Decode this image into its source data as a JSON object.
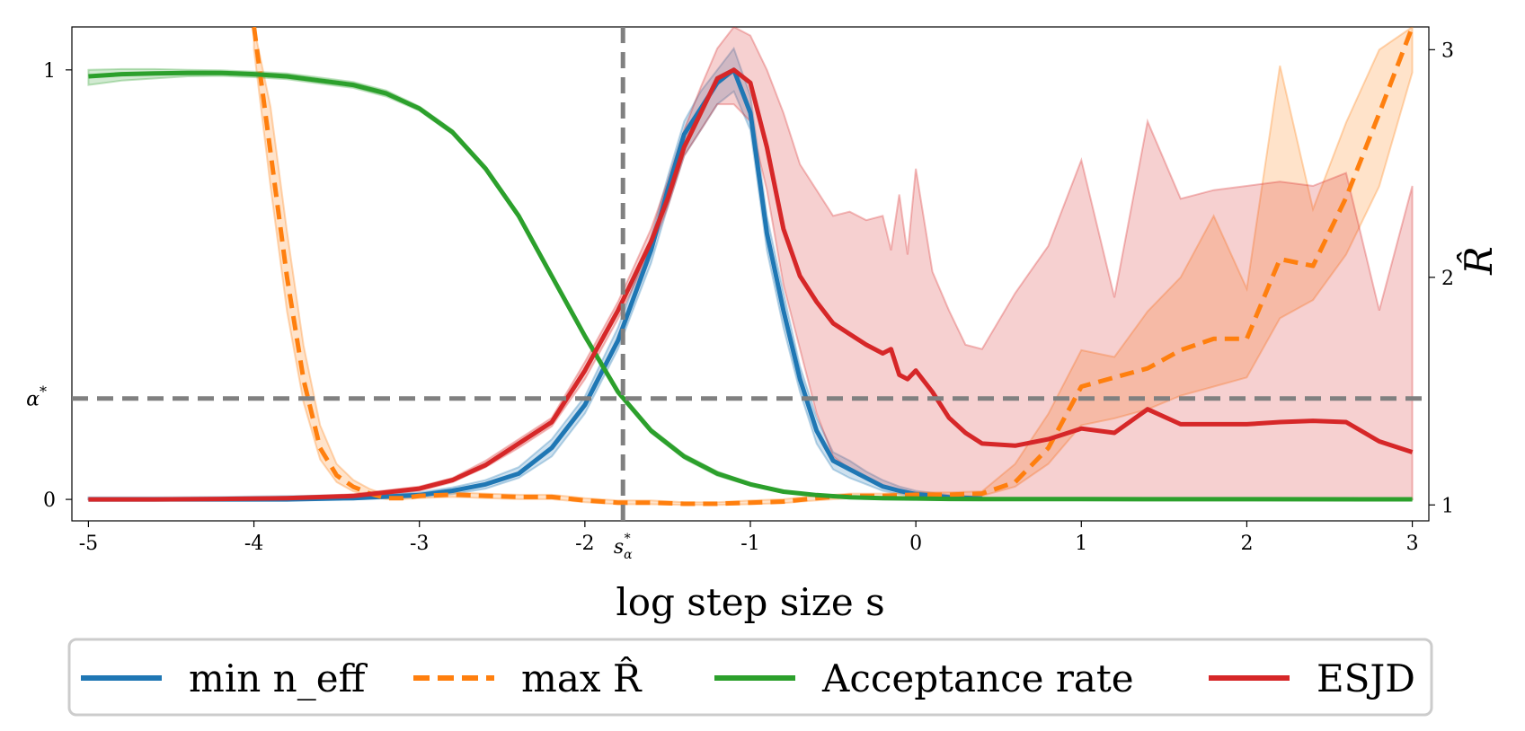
{
  "chart_data": {
    "type": "line",
    "xlabel": "log step size s",
    "y2label": "R̂",
    "xlim": [
      -5.1,
      3.1
    ],
    "ylim": [
      -0.05,
      1.1
    ],
    "y2lim": [
      0.93,
      3.1
    ],
    "x_ticks": [
      -5,
      -4,
      -3,
      -2,
      -1,
      0,
      1,
      2,
      3
    ],
    "x_tick_labels": [
      "-5",
      "-4",
      "-3",
      "-2",
      "-1",
      "0",
      "1",
      "2",
      "3"
    ],
    "y_ticks": [
      0,
      1
    ],
    "y_tick_labels": [
      "0",
      "1"
    ],
    "y2_ticks": [
      1,
      2,
      3
    ],
    "y2_tick_labels": [
      "1",
      "2",
      "3"
    ],
    "reference_lines": {
      "s_alpha_star": {
        "x": -1.77,
        "label": "s*α"
      },
      "alpha_star": {
        "y": 0.235,
        "label": "α*"
      }
    },
    "legend": {
      "position": "bottom, outside",
      "entries": [
        "min n_eff",
        "max R̂",
        "Acceptance rate",
        "ESJD"
      ]
    },
    "series": [
      {
        "name": "min n_eff",
        "color": "#1f77b4",
        "style": "solid",
        "axis": "left",
        "x": [
          -5,
          -4.6,
          -4.2,
          -3.8,
          -3.4,
          -3,
          -2.8,
          -2.6,
          -2.4,
          -2.2,
          -2,
          -1.8,
          -1.6,
          -1.5,
          -1.4,
          -1.3,
          -1.2,
          -1.1,
          -1.0,
          -0.9,
          -0.8,
          -0.7,
          -0.6,
          -0.5,
          -0.4,
          -0.3,
          -0.2,
          -0.1,
          0,
          0.2,
          0.4
        ],
        "y": [
          0,
          0,
          0,
          0,
          0.003,
          0.01,
          0.02,
          0.035,
          0.06,
          0.12,
          0.22,
          0.37,
          0.58,
          0.72,
          0.85,
          0.91,
          0.97,
          1.0,
          0.9,
          0.62,
          0.44,
          0.28,
          0.16,
          0.09,
          0.07,
          0.05,
          0.03,
          0.02,
          0.012,
          0.005,
          0.002
        ],
        "band_y_low": [
          0,
          0,
          0,
          0,
          0,
          0.005,
          0.012,
          0.025,
          0.05,
          0.1,
          0.2,
          0.35,
          0.55,
          0.68,
          0.8,
          0.86,
          0.92,
          0.95,
          0.86,
          0.58,
          0.4,
          0.25,
          0.13,
          0.07,
          0.05,
          0.035,
          0.02,
          0.012,
          0.006,
          0.002,
          0
        ],
        "band_y_high": [
          0.005,
          0.005,
          0.006,
          0.008,
          0.01,
          0.016,
          0.028,
          0.045,
          0.075,
          0.14,
          0.24,
          0.4,
          0.61,
          0.75,
          0.88,
          0.95,
          1.0,
          1.05,
          0.94,
          0.66,
          0.48,
          0.31,
          0.19,
          0.11,
          0.09,
          0.065,
          0.045,
          0.03,
          0.02,
          0.01,
          0.005
        ]
      },
      {
        "name": "max R̂",
        "color": "#ff7f0e",
        "style": "dashed",
        "axis": "right",
        "x": [
          -4.0,
          -3.9,
          -3.8,
          -3.7,
          -3.6,
          -3.5,
          -3.4,
          -3.3,
          -3.2,
          -3.1,
          -3.0,
          -2.8,
          -2.6,
          -2.4,
          -2.2,
          -2.0,
          -1.8,
          -1.6,
          -1.4,
          -1.2,
          -1.0,
          -0.8,
          -0.6,
          -0.4,
          -0.2,
          0.0,
          0.2,
          0.4,
          0.6,
          0.8,
          1.0,
          1.2,
          1.4,
          1.6,
          1.8,
          2.0,
          2.2,
          2.4,
          2.6,
          2.8,
          3.0
        ],
        "y": [
          3.1,
          2.55,
          2.0,
          1.55,
          1.25,
          1.13,
          1.08,
          1.05,
          1.03,
          1.03,
          1.04,
          1.045,
          1.04,
          1.035,
          1.035,
          1.02,
          1.01,
          1.01,
          1.005,
          1.005,
          1.01,
          1.015,
          1.03,
          1.04,
          1.04,
          1.045,
          1.045,
          1.05,
          1.1,
          1.25,
          1.52,
          1.56,
          1.6,
          1.68,
          1.73,
          1.73,
          2.08,
          2.05,
          2.35,
          2.72,
          3.1
        ],
        "band_y_low": [
          3.0,
          2.4,
          1.85,
          1.45,
          1.2,
          1.1,
          1.06,
          1.04,
          1.025,
          1.025,
          1.03,
          1.035,
          1.03,
          1.025,
          1.025,
          1.012,
          1.003,
          1.003,
          1.0,
          1.0,
          1.003,
          1.008,
          1.02,
          1.03,
          1.03,
          1.035,
          1.035,
          1.04,
          1.08,
          1.18,
          1.35,
          1.38,
          1.42,
          1.48,
          1.52,
          1.56,
          1.82,
          1.9,
          2.1,
          2.4,
          2.9
        ],
        "band_y_high": [
          3.2,
          2.75,
          2.2,
          1.7,
          1.35,
          1.18,
          1.11,
          1.07,
          1.045,
          1.04,
          1.05,
          1.055,
          1.05,
          1.045,
          1.045,
          1.03,
          1.02,
          1.02,
          1.012,
          1.012,
          1.02,
          1.025,
          1.04,
          1.05,
          1.05,
          1.055,
          1.055,
          1.06,
          1.18,
          1.4,
          1.68,
          1.65,
          1.85,
          2.0,
          2.27,
          1.95,
          2.93,
          2.3,
          2.68,
          3.0,
          3.3
        ]
      },
      {
        "name": "Acceptance rate",
        "color": "#2ca02c",
        "style": "solid",
        "axis": "left",
        "x": [
          -5,
          -4.8,
          -4.6,
          -4.4,
          -4.2,
          -4.0,
          -3.8,
          -3.6,
          -3.4,
          -3.2,
          -3.0,
          -2.8,
          -2.6,
          -2.4,
          -2.2,
          -2.0,
          -1.8,
          -1.6,
          -1.4,
          -1.2,
          -1.0,
          -0.8,
          -0.6,
          -0.4,
          -0.2,
          0.0,
          0.2,
          0.4,
          1.0,
          2.0,
          3.0
        ],
        "y": [
          0.985,
          0.99,
          0.992,
          0.993,
          0.993,
          0.99,
          0.985,
          0.975,
          0.965,
          0.945,
          0.91,
          0.855,
          0.77,
          0.66,
          0.52,
          0.38,
          0.25,
          0.16,
          0.1,
          0.06,
          0.035,
          0.018,
          0.01,
          0.005,
          0.003,
          0.002,
          0.001,
          0.0008,
          0.0005,
          0.0003,
          0.0002
        ],
        "band_y_low": [
          0.965,
          0.975,
          0.98,
          0.985,
          0.986,
          0.983,
          0.978,
          0.968,
          0.958,
          0.938,
          0.905,
          0.85,
          0.765,
          0.655,
          0.515,
          0.375,
          0.245,
          0.155,
          0.095,
          0.055,
          0.032,
          0.016,
          0.008,
          0.004,
          0.002,
          0.001,
          0.0005,
          0.0003,
          0.0002,
          0.0001,
          0
        ],
        "band_y_high": [
          1.0,
          1.002,
          1.002,
          1.0,
          0.999,
          0.996,
          0.992,
          0.982,
          0.972,
          0.952,
          0.915,
          0.86,
          0.775,
          0.665,
          0.525,
          0.385,
          0.255,
          0.165,
          0.105,
          0.065,
          0.038,
          0.02,
          0.012,
          0.006,
          0.004,
          0.003,
          0.002,
          0.0015,
          0.001,
          0.001,
          0.001
        ]
      },
      {
        "name": "ESJD",
        "color": "#d62728",
        "style": "solid",
        "axis": "left",
        "x": [
          -5,
          -4.6,
          -4.2,
          -3.8,
          -3.4,
          -3.0,
          -2.8,
          -2.6,
          -2.4,
          -2.2,
          -2.0,
          -1.8,
          -1.6,
          -1.5,
          -1.4,
          -1.3,
          -1.2,
          -1.1,
          -1.0,
          -0.9,
          -0.8,
          -0.7,
          -0.6,
          -0.5,
          -0.4,
          -0.3,
          -0.2,
          -0.15,
          -0.1,
          -0.05,
          0.0,
          0.1,
          0.2,
          0.3,
          0.4,
          0.6,
          0.8,
          1.0,
          1.2,
          1.4,
          1.6,
          1.8,
          2.0,
          2.2,
          2.4,
          2.6,
          2.8,
          3.0
        ],
        "y": [
          0,
          0,
          0.001,
          0.003,
          0.008,
          0.025,
          0.045,
          0.08,
          0.13,
          0.18,
          0.3,
          0.44,
          0.6,
          0.7,
          0.82,
          0.9,
          0.98,
          1.0,
          0.97,
          0.82,
          0.63,
          0.52,
          0.46,
          0.41,
          0.385,
          0.36,
          0.34,
          0.35,
          0.29,
          0.28,
          0.3,
          0.25,
          0.19,
          0.155,
          0.13,
          0.125,
          0.14,
          0.165,
          0.155,
          0.21,
          0.175,
          0.175,
          0.175,
          0.18,
          0.183,
          0.18,
          0.135,
          0.11
        ],
        "band_y_low": [
          0,
          0,
          0,
          0.001,
          0.005,
          0.02,
          0.04,
          0.075,
          0.12,
          0.17,
          0.28,
          0.42,
          0.58,
          0.68,
          0.8,
          0.86,
          0.92,
          0.92,
          0.88,
          0.72,
          0.5,
          0.35,
          0.2,
          0.1,
          0.07,
          0.05,
          0.03,
          0.025,
          0.02,
          0.015,
          0.012,
          0.006,
          0.003,
          0.002,
          0.001,
          0,
          0,
          0,
          0,
          0,
          0,
          0,
          0,
          0,
          0,
          0,
          0,
          0
        ],
        "band_y_high": [
          0.002,
          0.002,
          0.003,
          0.006,
          0.012,
          0.03,
          0.05,
          0.09,
          0.14,
          0.19,
          0.32,
          0.46,
          0.63,
          0.74,
          0.86,
          0.96,
          1.05,
          1.1,
          1.08,
          1.0,
          0.9,
          0.78,
          0.72,
          0.66,
          0.67,
          0.65,
          0.66,
          0.58,
          0.71,
          0.57,
          0.77,
          0.53,
          0.44,
          0.36,
          0.35,
          0.48,
          0.59,
          0.79,
          0.47,
          0.88,
          0.7,
          0.72,
          0.73,
          0.74,
          0.73,
          0.76,
          0.44,
          0.73
        ]
      }
    ]
  }
}
